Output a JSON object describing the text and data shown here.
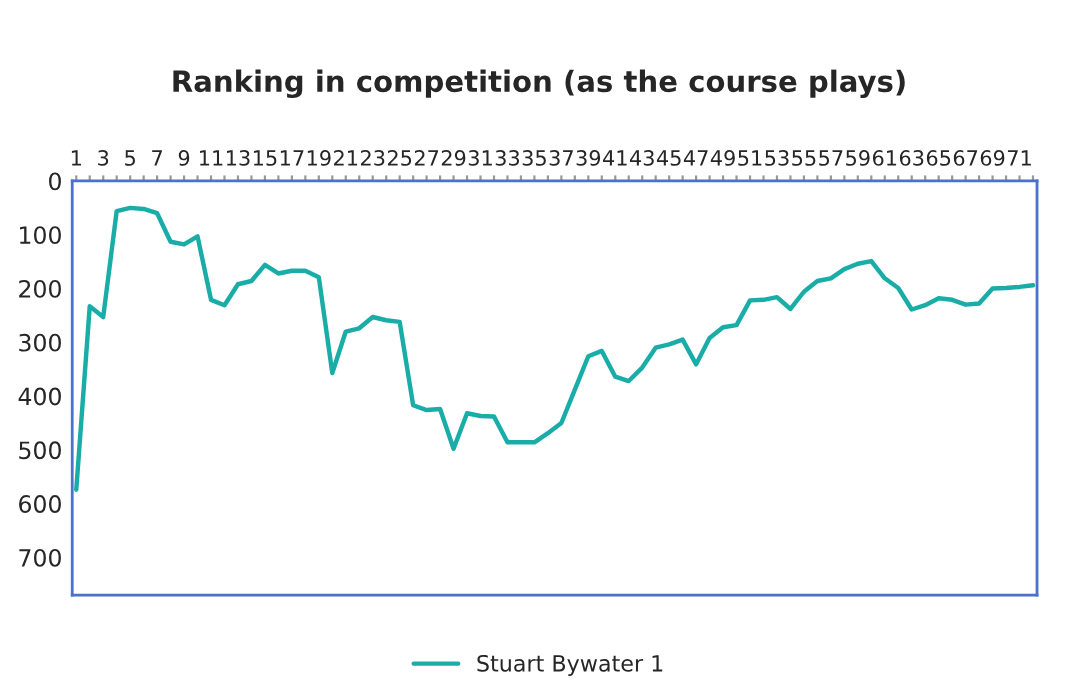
{
  "chart_data": {
    "type": "line",
    "title": "Ranking in competition (as the course plays)",
    "categories": [
      "1",
      null,
      "3",
      null,
      "5",
      null,
      "7",
      null,
      "9",
      null,
      "11",
      null,
      "13",
      null,
      "15",
      null,
      "17",
      null,
      "19",
      null,
      "21",
      null,
      "23",
      null,
      "25",
      null,
      "27",
      null,
      "29",
      null,
      "31",
      null,
      "33",
      null,
      "35",
      null,
      "37",
      null,
      "39",
      null,
      "41",
      null,
      "43",
      null,
      "45",
      null,
      "47",
      null,
      "49",
      null,
      "51",
      null,
      "53",
      null,
      "55",
      null,
      "57",
      null,
      "59",
      null,
      "61",
      null,
      "63",
      null,
      "65",
      null,
      "67",
      null,
      "69",
      null,
      "71",
      null
    ],
    "series": [
      {
        "name": "Stuart Bywater 1",
        "color": "#1aada8",
        "values": [
          574,
          233,
          253,
          56,
          50,
          52,
          60,
          113,
          118,
          103,
          221,
          231,
          192,
          186,
          156,
          172,
          167,
          167,
          179,
          357,
          280,
          274,
          253,
          259,
          262,
          417,
          426,
          424,
          498,
          432,
          437,
          438,
          486,
          486,
          486,
          469,
          450,
          388,
          326,
          316,
          364,
          372,
          347,
          310,
          304,
          295,
          341,
          292,
          272,
          268,
          222,
          221,
          216,
          238,
          206,
          186,
          181,
          164,
          154,
          149,
          181,
          199,
          239,
          231,
          218,
          221,
          230,
          228,
          200,
          199,
          197,
          194
        ]
      }
    ],
    "ylim": [
      770,
      0
    ],
    "yticks": [
      0,
      100,
      200,
      300,
      400,
      500,
      600,
      700
    ],
    "grid": false,
    "legend": "bottom",
    "marker": "none",
    "line_style": "solid"
  }
}
